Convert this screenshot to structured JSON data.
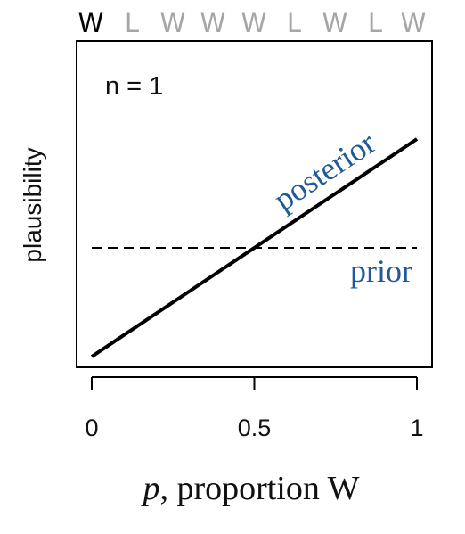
{
  "chart_data": {
    "type": "line",
    "sequence": [
      "W",
      "L",
      "W",
      "W",
      "W",
      "L",
      "W",
      "L",
      "W"
    ],
    "sequence_highlight_count": 1,
    "annotation": "n = 1",
    "xlabel_italic": "p",
    "xlabel_rest": ", proportion W",
    "ylabel": "plausibility",
    "xlim": [
      0,
      1
    ],
    "ylim": [
      0,
      2
    ],
    "xticks": [
      {
        "value": 0,
        "label": "0"
      },
      {
        "value": 0.5,
        "label": "0.5"
      },
      {
        "value": 1,
        "label": "1"
      }
    ],
    "series": [
      {
        "name": "posterior",
        "style": "solid",
        "color": "#000000",
        "label_color": "#1f5a96",
        "x": [
          0,
          1
        ],
        "y": [
          0,
          2
        ]
      },
      {
        "name": "prior",
        "style": "dashed",
        "color": "#000000",
        "label_color": "#1f5a96",
        "x": [
          0,
          1
        ],
        "y": [
          1,
          1
        ]
      }
    ],
    "colors": {
      "highlight": "#000000",
      "muted": "#a6a6a6",
      "series_label": "#1f5a96"
    },
    "grid": false
  }
}
